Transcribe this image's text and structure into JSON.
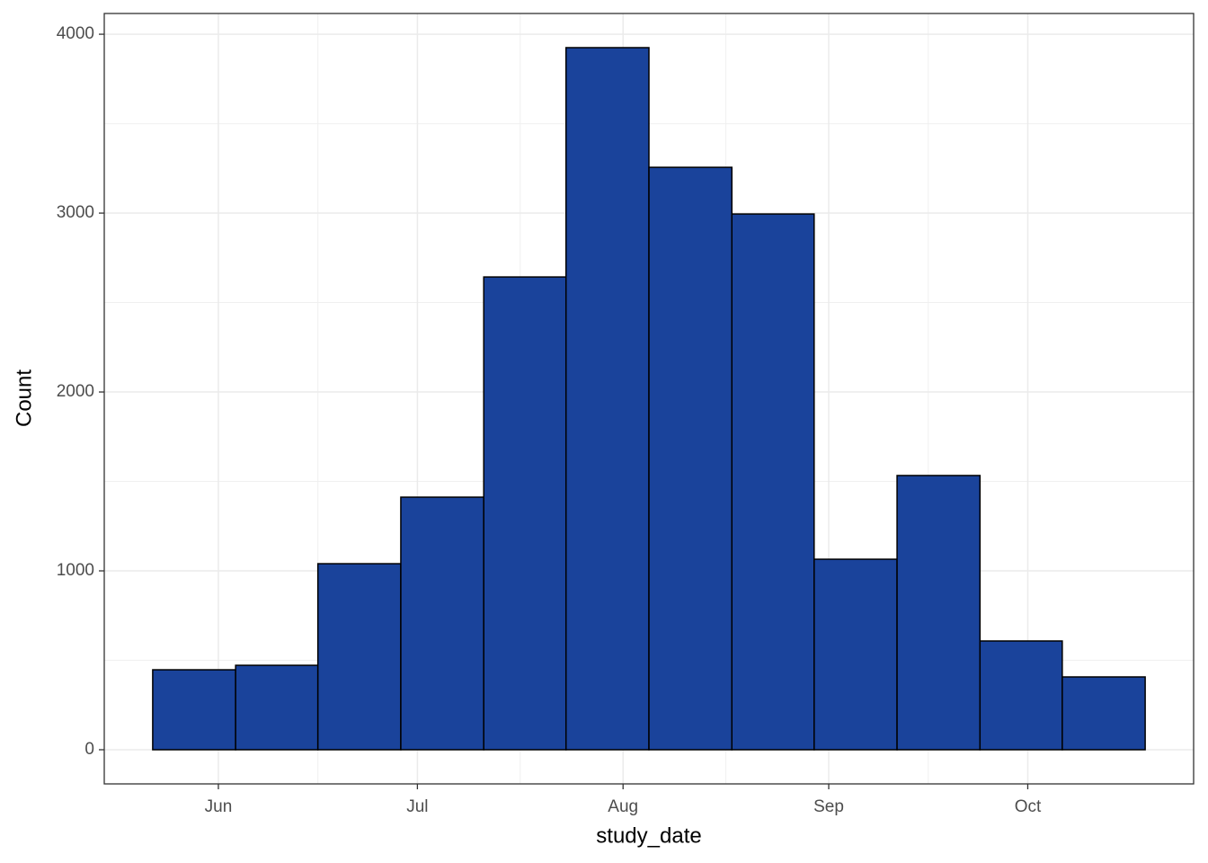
{
  "chart_data": {
    "type": "histogram",
    "x_label": "study_date",
    "y_label": "Count",
    "bins": [
      142.1,
      154.6,
      167.0,
      179.5,
      192.0,
      204.4,
      216.9,
      229.4,
      241.8,
      254.3,
      266.8,
      279.2,
      291.7
    ],
    "values": [
      447,
      472,
      1040,
      1412,
      2643,
      3925,
      3256,
      2995,
      1065,
      1533,
      608,
      407
    ],
    "color": "#1a439b",
    "edge_color": "#000000",
    "xlim": [
      134.8,
      299.0
    ],
    "xticks": [
      {
        "value": 152,
        "label": "Jun"
      },
      {
        "value": 182,
        "label": "Jul"
      },
      {
        "value": 213,
        "label": "Aug"
      },
      {
        "value": 244,
        "label": "Sep"
      },
      {
        "value": 274,
        "label": "Oct"
      }
    ],
    "ylim": [
      -191,
      4116
    ],
    "yticks": [
      0,
      1000,
      2000,
      3000,
      4000
    ],
    "grid": true
  }
}
